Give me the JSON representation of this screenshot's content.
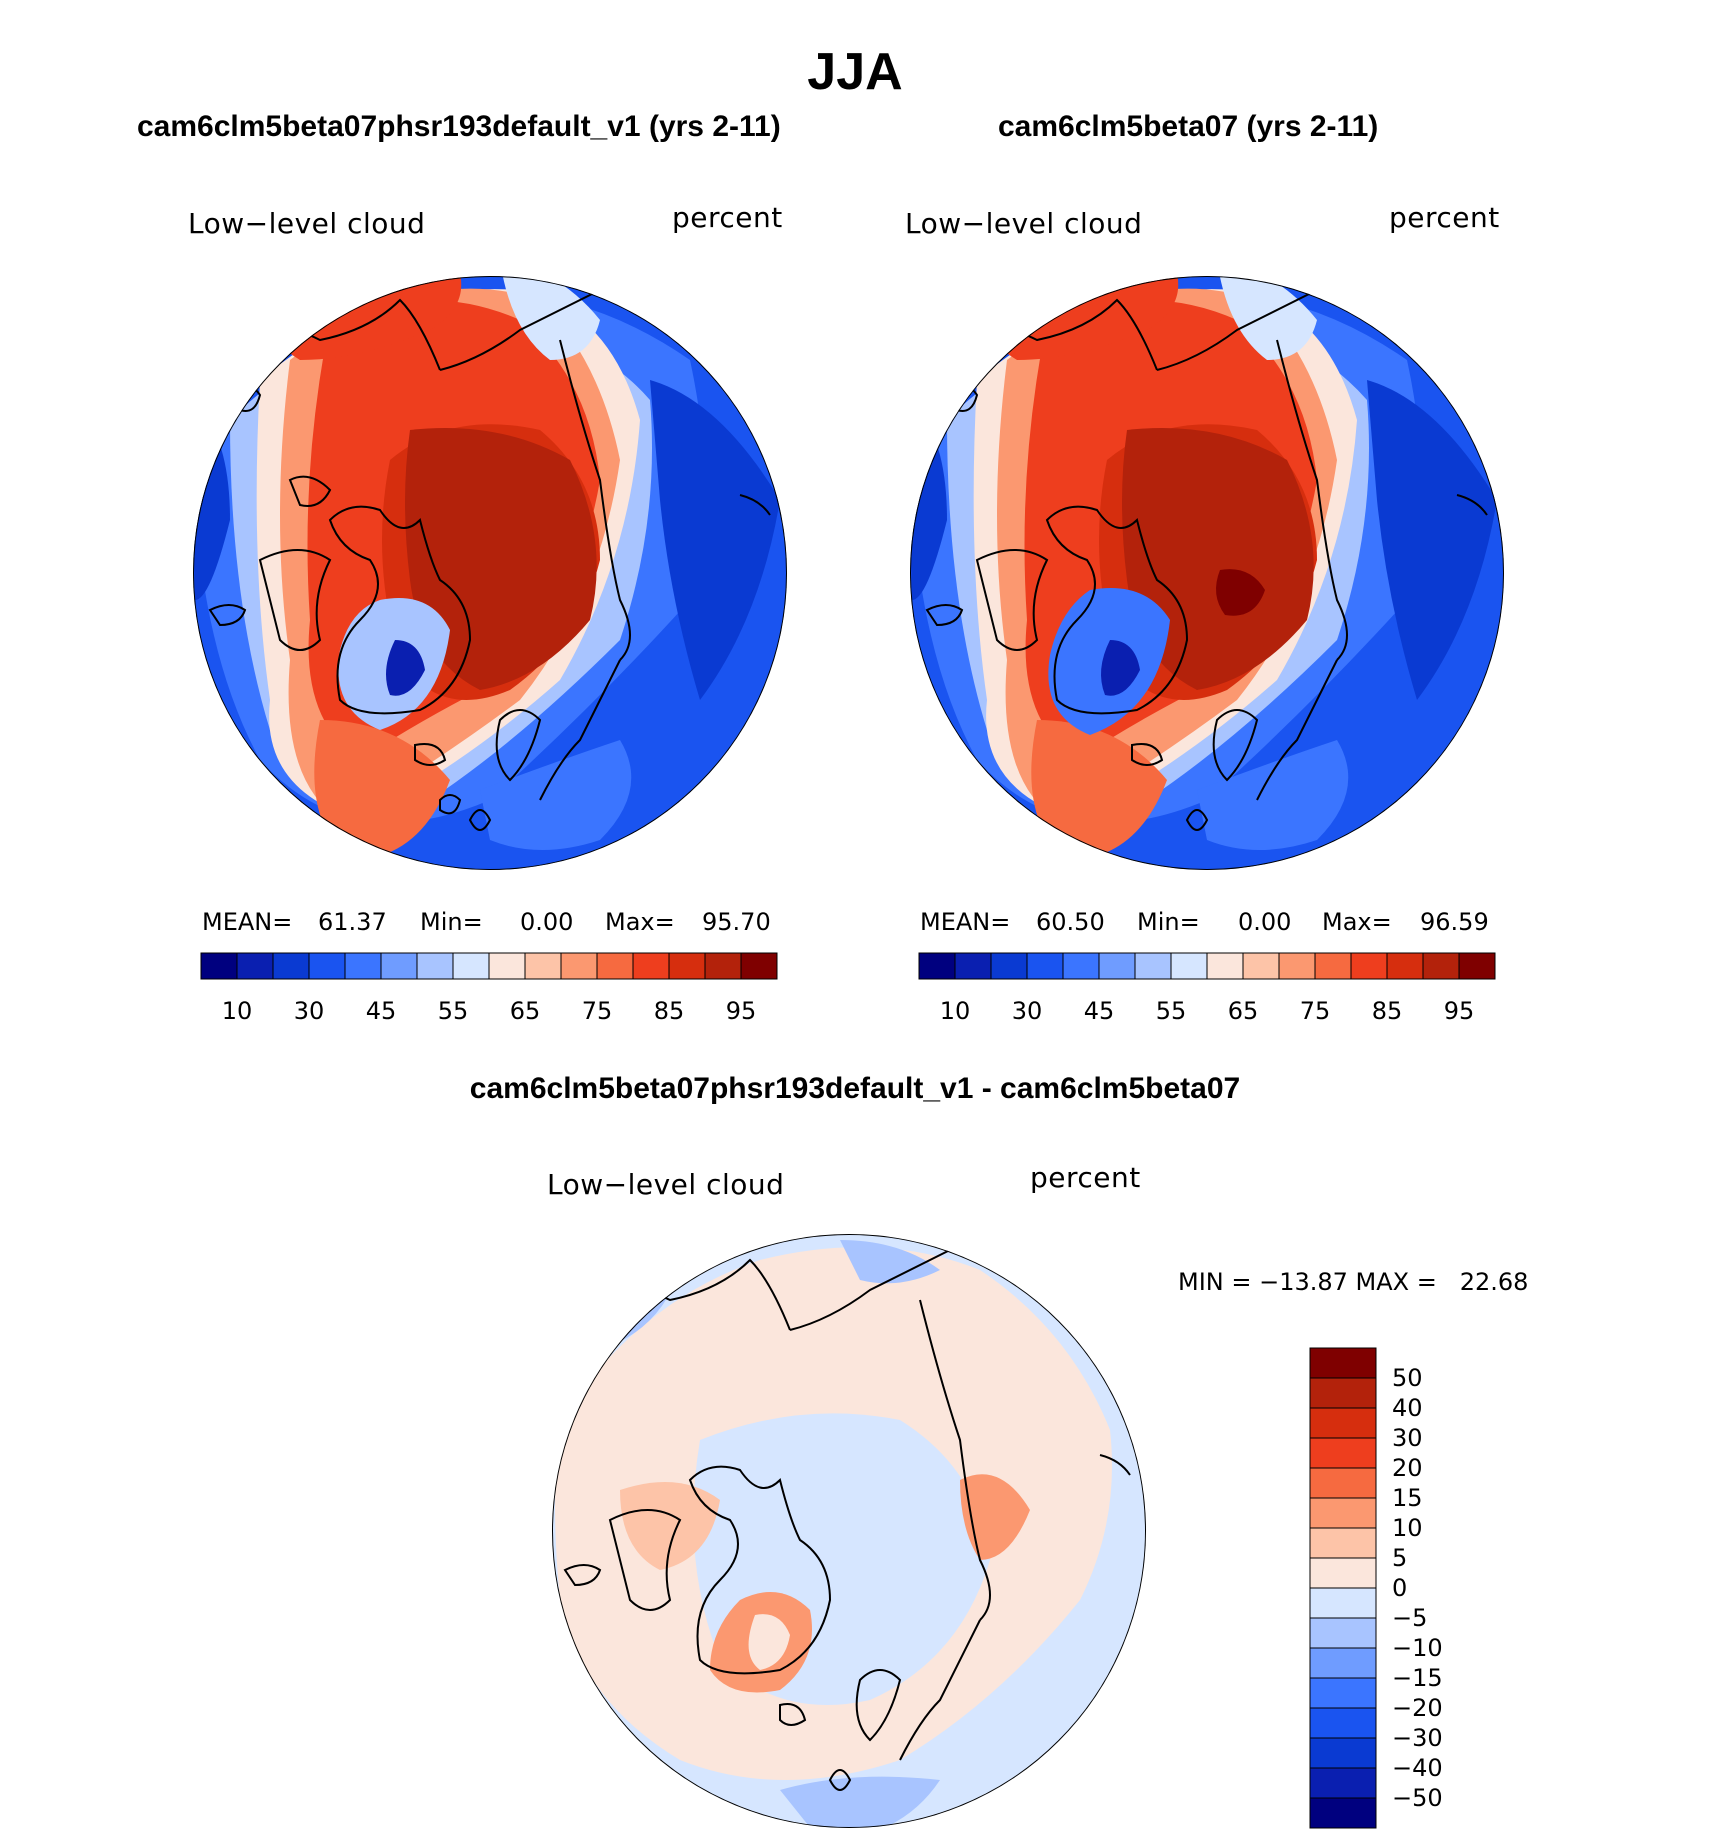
{
  "title": "JJA",
  "colors": {
    "seq": [
      "#00007f",
      "#0a1fb0",
      "#0a3ad2",
      "#1a54f0",
      "#3b75ff",
      "#6f9cff",
      "#a8c4ff",
      "#d6e6ff",
      "#fbe6dc",
      "#fdc4a8",
      "#fb9870",
      "#f66a40",
      "#ee3e1e",
      "#d62e0e",
      "#b3220b",
      "#7f0000"
    ],
    "diff": [
      "#00007f",
      "#0a1fb0",
      "#0a3ad2",
      "#1a54f0",
      "#3b75ff",
      "#6f9cff",
      "#a8c4ff",
      "#d6e6ff",
      "#fbe6dc",
      "#fdc4a8",
      "#fb9870",
      "#f66a40",
      "#ee3e1e",
      "#d62e0e",
      "#b3220b",
      "#7f0000"
    ],
    "coast": "#000000"
  },
  "panels": [
    {
      "case_title": "cam6clm5beta07phsr193default_v1 (yrs 2-11)",
      "variable": "Low−level cloud",
      "units": "percent",
      "mean_label": "MEAN=",
      "mean": "61.37",
      "min_label": "Min=",
      "min": "0.00",
      "max_label": "Max=",
      "max": "95.70"
    },
    {
      "case_title": "cam6clm5beta07 (yrs 2-11)",
      "variable": "Low−level cloud",
      "units": "percent",
      "mean_label": "MEAN=",
      "mean": "60.50",
      "min_label": "Min=",
      "min": "0.00",
      "max_label": "Max=",
      "max": "96.59"
    }
  ],
  "seq_colorbar": {
    "tick_labels": [
      "10",
      "30",
      "45",
      "55",
      "65",
      "75",
      "85",
      "95"
    ]
  },
  "diff_panel": {
    "title": "cam6clm5beta07phsr193default_v1 - cam6clm5beta07",
    "variable": "Low−level cloud",
    "units": "percent",
    "minmax_text": "MIN = −13.87 MAX =   22.68",
    "colorbar_labels": [
      "50",
      "40",
      "30",
      "20",
      "15",
      "10",
      "5",
      "0",
      "−5",
      "−10",
      "−15",
      "−20",
      "−30",
      "−40",
      "−50"
    ]
  }
}
